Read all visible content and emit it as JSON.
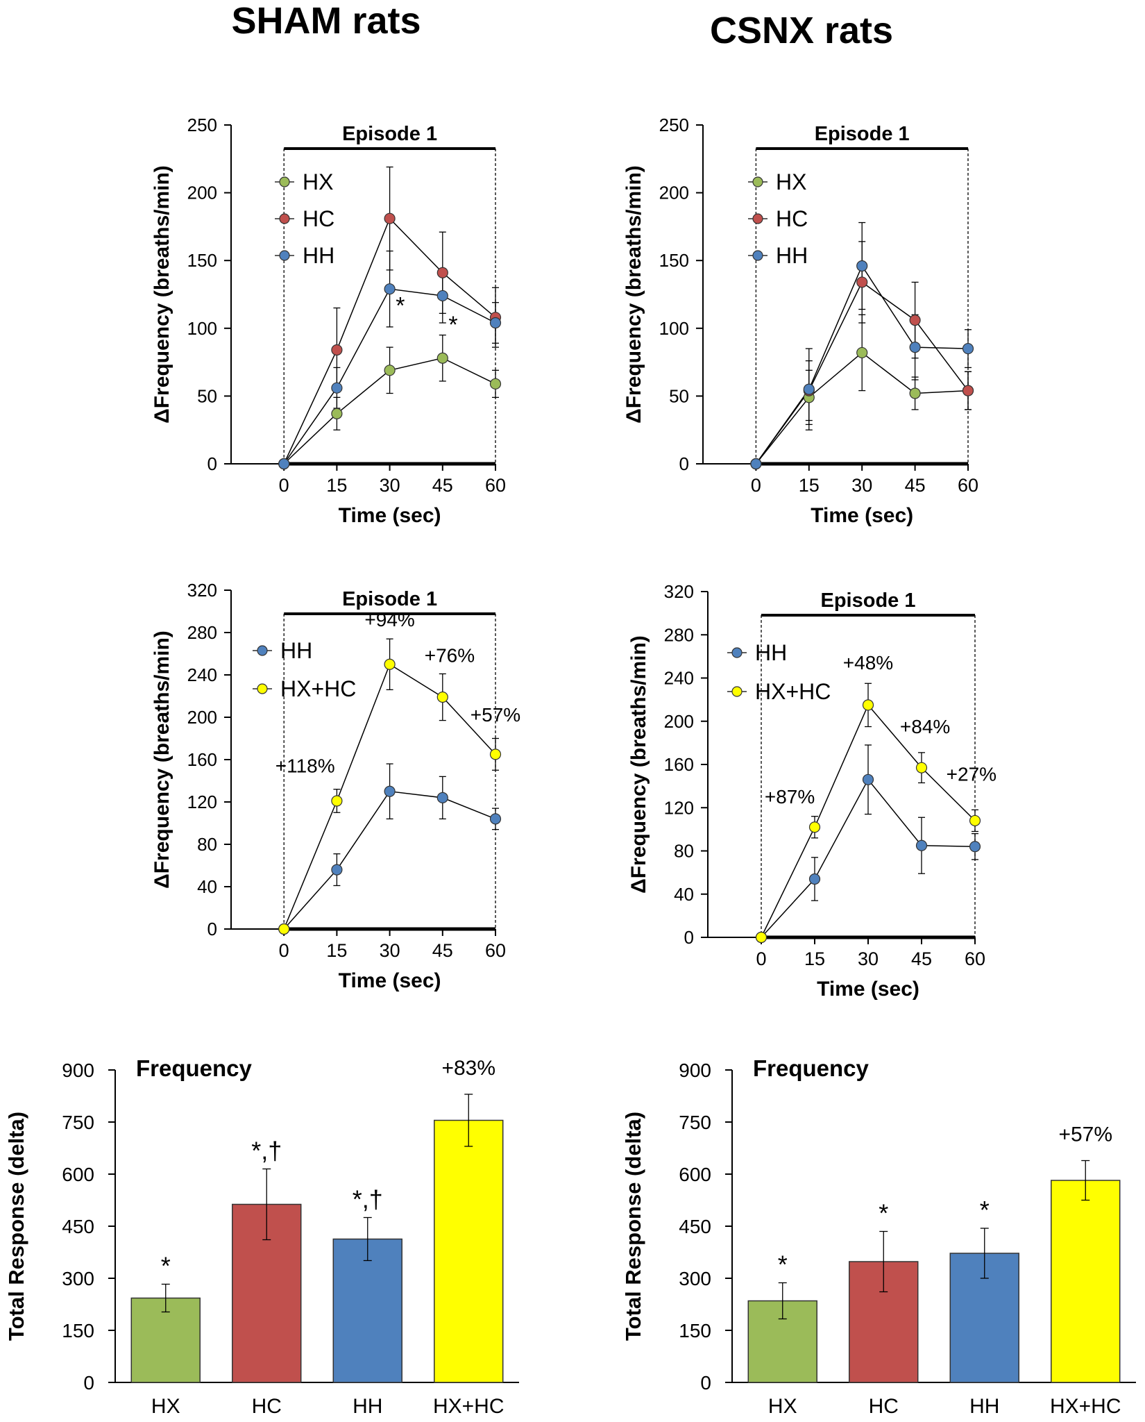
{
  "column_titles": {
    "left": "SHAM rats",
    "right": "CSNX rats"
  },
  "colors": {
    "HX": "#9bbb59",
    "HC": "#c0504d",
    "HH": "#4f81bd",
    "HXHC": "#ffff00",
    "axis": "#000000"
  },
  "chart_data": [
    {
      "id": "sham-top",
      "type": "line",
      "title": "Episode 1",
      "xlabel": "Time (sec)",
      "ylabel": "ΔFrequency (breaths/min)",
      "x": [
        0,
        15,
        30,
        45,
        60
      ],
      "xticks": [
        "0",
        "15",
        "30",
        "45",
        "60"
      ],
      "ylim": [
        0,
        250
      ],
      "yticks": [
        0,
        50,
        100,
        150,
        200,
        250
      ],
      "xlim": [
        -15,
        60
      ],
      "series": [
        {
          "name": "HX",
          "color_key": "HX",
          "values": [
            0,
            37,
            69,
            78,
            59
          ],
          "err": [
            0,
            12,
            17,
            17,
            10
          ]
        },
        {
          "name": "HC",
          "color_key": "HC",
          "values": [
            0,
            84,
            181,
            141,
            108
          ],
          "err": [
            0,
            31,
            38,
            30,
            22
          ]
        },
        {
          "name": "HH",
          "color_key": "HH",
          "values": [
            0,
            56,
            129,
            124,
            104
          ],
          "err": [
            0,
            15,
            28,
            20,
            15
          ]
        }
      ],
      "annotations": [
        {
          "text": "*",
          "x": 33,
          "y": 118
        },
        {
          "text": "*",
          "x": 48,
          "y": 104
        }
      ]
    },
    {
      "id": "csnx-top",
      "type": "line",
      "title": "Episode 1",
      "xlabel": "Time (sec)",
      "ylabel": "ΔFrequency (breaths/min)",
      "x": [
        0,
        15,
        30,
        45,
        60
      ],
      "xticks": [
        "0",
        "15",
        "30",
        "45",
        "60"
      ],
      "ylim": [
        0,
        250
      ],
      "yticks": [
        0,
        50,
        100,
        150,
        200,
        250
      ],
      "xlim": [
        -15,
        60
      ],
      "series": [
        {
          "name": "HX",
          "color_key": "HX",
          "values": [
            0,
            49,
            82,
            52,
            54
          ],
          "err": [
            0,
            20,
            28,
            12,
            14
          ]
        },
        {
          "name": "HC",
          "color_key": "HC",
          "values": [
            0,
            54,
            134,
            106,
            54
          ],
          "err": [
            0,
            22,
            30,
            28,
            14
          ]
        },
        {
          "name": "HH",
          "color_key": "HH",
          "values": [
            0,
            55,
            146,
            86,
            85
          ],
          "err": [
            0,
            30,
            32,
            24,
            14
          ]
        }
      ],
      "annotations": []
    },
    {
      "id": "sham-mid",
      "type": "line",
      "title": "Episode 1",
      "xlabel": "Time (sec)",
      "ylabel": "ΔFrequency (breaths/min)",
      "x": [
        0,
        15,
        30,
        45,
        60
      ],
      "xticks": [
        "0",
        "15",
        "30",
        "45",
        "60"
      ],
      "ylim": [
        0,
        320
      ],
      "yticks": [
        0,
        40,
        80,
        120,
        160,
        200,
        240,
        280,
        320
      ],
      "xlim": [
        -15,
        60
      ],
      "series": [
        {
          "name": "HH",
          "color_key": "HH",
          "values": [
            0,
            56,
            130,
            124,
            104
          ],
          "err": [
            0,
            15,
            26,
            20,
            10
          ]
        },
        {
          "name": "HX+HC",
          "color_key": "HXHC",
          "values": [
            0,
            121,
            250,
            219,
            165
          ],
          "err": [
            0,
            11,
            24,
            22,
            15
          ]
        }
      ],
      "annotations": [
        {
          "text": "+118%",
          "x": 6,
          "y": 148
        },
        {
          "text": "+94%",
          "x": 30,
          "y": 286
        },
        {
          "text": "+76%",
          "x": 47,
          "y": 252
        },
        {
          "text": "+57%",
          "x": 60,
          "y": 196
        }
      ]
    },
    {
      "id": "csnx-mid",
      "type": "line",
      "title": "Episode 1",
      "xlabel": "Time (sec)",
      "ylabel": "ΔFrequency (breaths/min)",
      "x": [
        0,
        15,
        30,
        45,
        60
      ],
      "xticks": [
        "0",
        "15",
        "30",
        "45",
        "60"
      ],
      "ylim": [
        0,
        320
      ],
      "yticks": [
        0,
        40,
        80,
        120,
        160,
        200,
        240,
        280,
        320
      ],
      "xlim": [
        -15,
        60
      ],
      "series": [
        {
          "name": "HH",
          "color_key": "HH",
          "values": [
            0,
            54,
            146,
            85,
            84
          ],
          "err": [
            0,
            20,
            32,
            26,
            12
          ]
        },
        {
          "name": "HX+HC",
          "color_key": "HXHC",
          "values": [
            0,
            102,
            215,
            157,
            108
          ],
          "err": [
            0,
            10,
            20,
            14,
            10
          ]
        }
      ],
      "annotations": [
        {
          "text": "+87%",
          "x": 8,
          "y": 124
        },
        {
          "text": "+48%",
          "x": 30,
          "y": 248
        },
        {
          "text": "+84%",
          "x": 46,
          "y": 189
        },
        {
          "text": "+27%",
          "x": 59,
          "y": 145
        }
      ]
    },
    {
      "id": "sham-bar",
      "type": "bar",
      "title": "Frequency",
      "xlabel": "",
      "ylabel": "Total Response (delta)",
      "categories": [
        "HX",
        "HC",
        "HH",
        "HX+HC"
      ],
      "color_keys": [
        "HX",
        "HC",
        "HH",
        "HXHC"
      ],
      "values": [
        243,
        513,
        413,
        755
      ],
      "err": [
        40,
        102,
        62,
        75
      ],
      "labels": [
        "*",
        "*,†",
        "*,†",
        "+83%"
      ],
      "ylim": [
        0,
        900
      ],
      "yticks": [
        0,
        150,
        300,
        450,
        600,
        750,
        900
      ]
    },
    {
      "id": "csnx-bar",
      "type": "bar",
      "title": "Frequency",
      "xlabel": "",
      "ylabel": "Total Response (delta)",
      "categories": [
        "HX",
        "HC",
        "HH",
        "HX+HC"
      ],
      "color_keys": [
        "HX",
        "HC",
        "HH",
        "HXHC"
      ],
      "values": [
        235,
        348,
        372,
        582
      ],
      "err": [
        52,
        87,
        72,
        57
      ],
      "labels": [
        "*",
        "*",
        "*",
        "+57%"
      ],
      "ylim": [
        0,
        900
      ],
      "yticks": [
        0,
        150,
        300,
        450,
        600,
        750,
        900
      ]
    }
  ]
}
